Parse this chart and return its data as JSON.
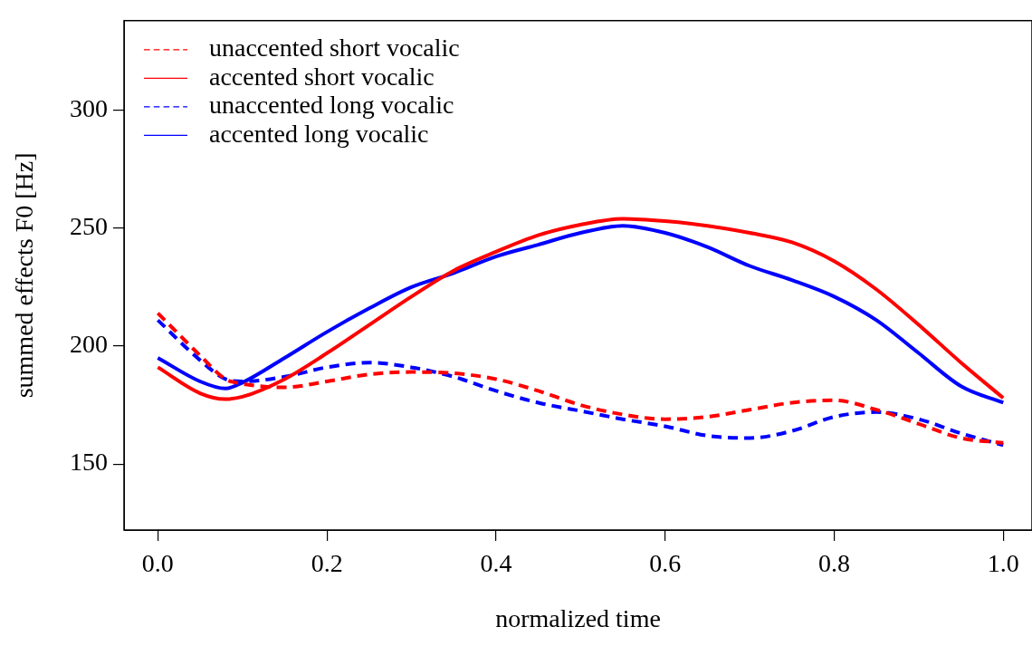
{
  "chart_data": {
    "type": "line",
    "xlabel": "normalized time",
    "ylabel": "summed effects F0 [Hz]",
    "xlim": [
      -0.04,
      1.034
    ],
    "ylim": [
      122,
      338
    ],
    "xticks": [
      {
        "value": 0,
        "label": "0.0"
      },
      {
        "value": 0.2,
        "label": "0.2"
      },
      {
        "value": 0.4,
        "label": "0.4"
      },
      {
        "value": 0.6,
        "label": "0.6"
      },
      {
        "value": 0.8,
        "label": "0.8"
      },
      {
        "value": 1,
        "label": "1.0"
      }
    ],
    "yticks": [
      150,
      200,
      250,
      300
    ],
    "x": [
      0,
      0.05,
      0.08,
      0.1,
      0.15,
      0.2,
      0.25,
      0.3,
      0.35,
      0.4,
      0.45,
      0.5,
      0.55,
      0.6,
      0.65,
      0.7,
      0.75,
      0.8,
      0.85,
      0.9,
      0.95,
      1.0
    ],
    "grid": false,
    "legend": "top left",
    "marker": "none",
    "series": [
      {
        "name": "unaccented short vocalic",
        "color": "#ff0000",
        "line_style": "dashed",
        "values": [
          214,
          196,
          186,
          184,
          182.5,
          185,
          188,
          189,
          188.5,
          186,
          181,
          175,
          171,
          169,
          170,
          173,
          176,
          177,
          173,
          167,
          161,
          159
        ]
      },
      {
        "name": "accented short vocalic",
        "color": "#ff0000",
        "line_style": "solid",
        "values": [
          191,
          180,
          177.5,
          178.5,
          186,
          197,
          209,
          221,
          232,
          240,
          247,
          251.5,
          254,
          253,
          251,
          248,
          244,
          236,
          224,
          209,
          193,
          178
        ]
      },
      {
        "name": "unaccented long vocalic",
        "color": "#0000ff",
        "line_style": "dashed",
        "values": [
          211,
          194,
          186,
          185,
          187,
          191,
          193,
          191,
          187,
          181,
          176,
          172.5,
          169,
          166,
          162,
          161,
          164,
          170,
          172,
          169,
          163,
          158
        ]
      },
      {
        "name": "accented long vocalic",
        "color": "#0000ff",
        "line_style": "solid",
        "values": [
          195,
          185,
          182,
          184.5,
          195,
          206,
          216,
          225,
          231,
          238,
          243,
          248,
          251,
          248,
          242,
          234,
          228,
          221,
          211,
          197,
          183,
          176
        ]
      }
    ]
  }
}
